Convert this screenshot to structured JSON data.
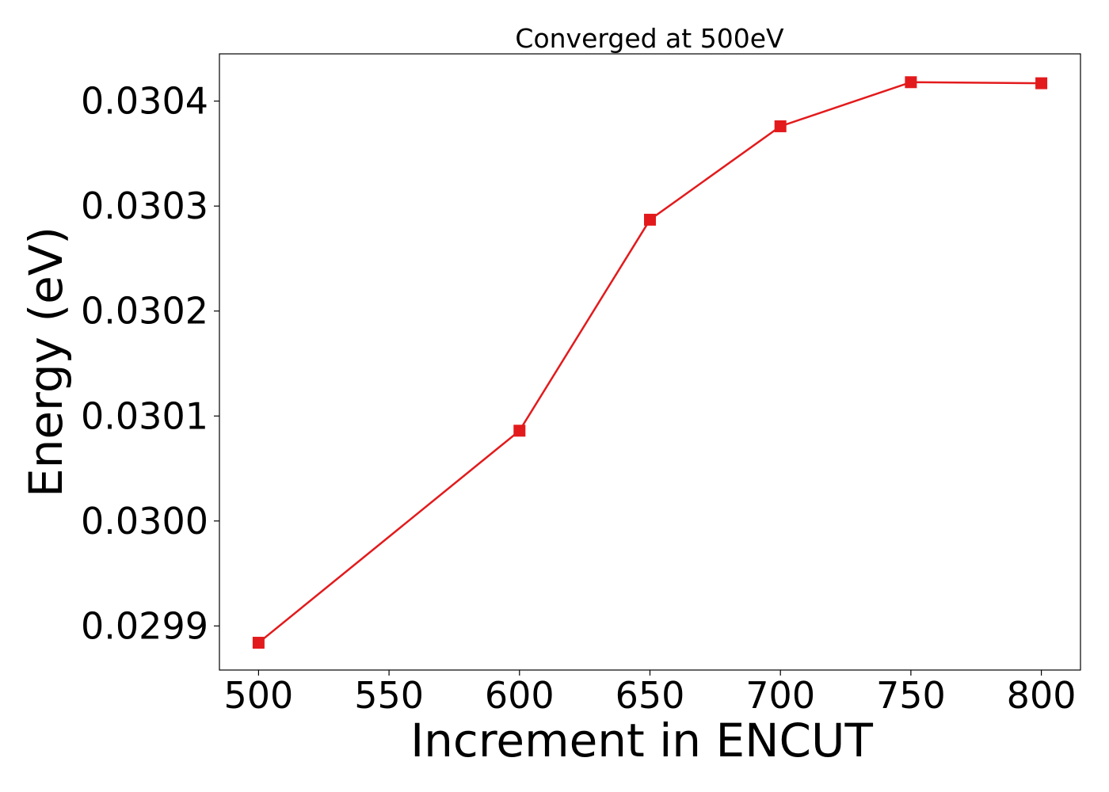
{
  "chart_data": {
    "type": "line",
    "title": "Converged at 500eV",
    "xlabel": "Increment in ENCUT",
    "ylabel": "Energy (eV)",
    "x": [
      500,
      600,
      650,
      700,
      750,
      800
    ],
    "series": [
      {
        "values": [
          0.029884,
          0.030086,
          0.030287,
          0.030376,
          0.030418,
          0.030417
        ],
        "color": "#e31a1c",
        "marker": "square"
      }
    ],
    "xticks": [
      500,
      550,
      600,
      650,
      700,
      750,
      800
    ],
    "xtick_labels": [
      "500",
      "550",
      "600",
      "650",
      "700",
      "750",
      "800"
    ],
    "yticks": [
      0.0299,
      0.03,
      0.0301,
      0.0302,
      0.0303,
      0.0304
    ],
    "ytick_labels": [
      "0.0299",
      "0.0300",
      "0.0301",
      "0.0302",
      "0.0303",
      "0.0304"
    ],
    "xlim": [
      485,
      815
    ],
    "ylim": [
      0.029858,
      0.030445
    ],
    "grid": false,
    "legend": "none"
  }
}
